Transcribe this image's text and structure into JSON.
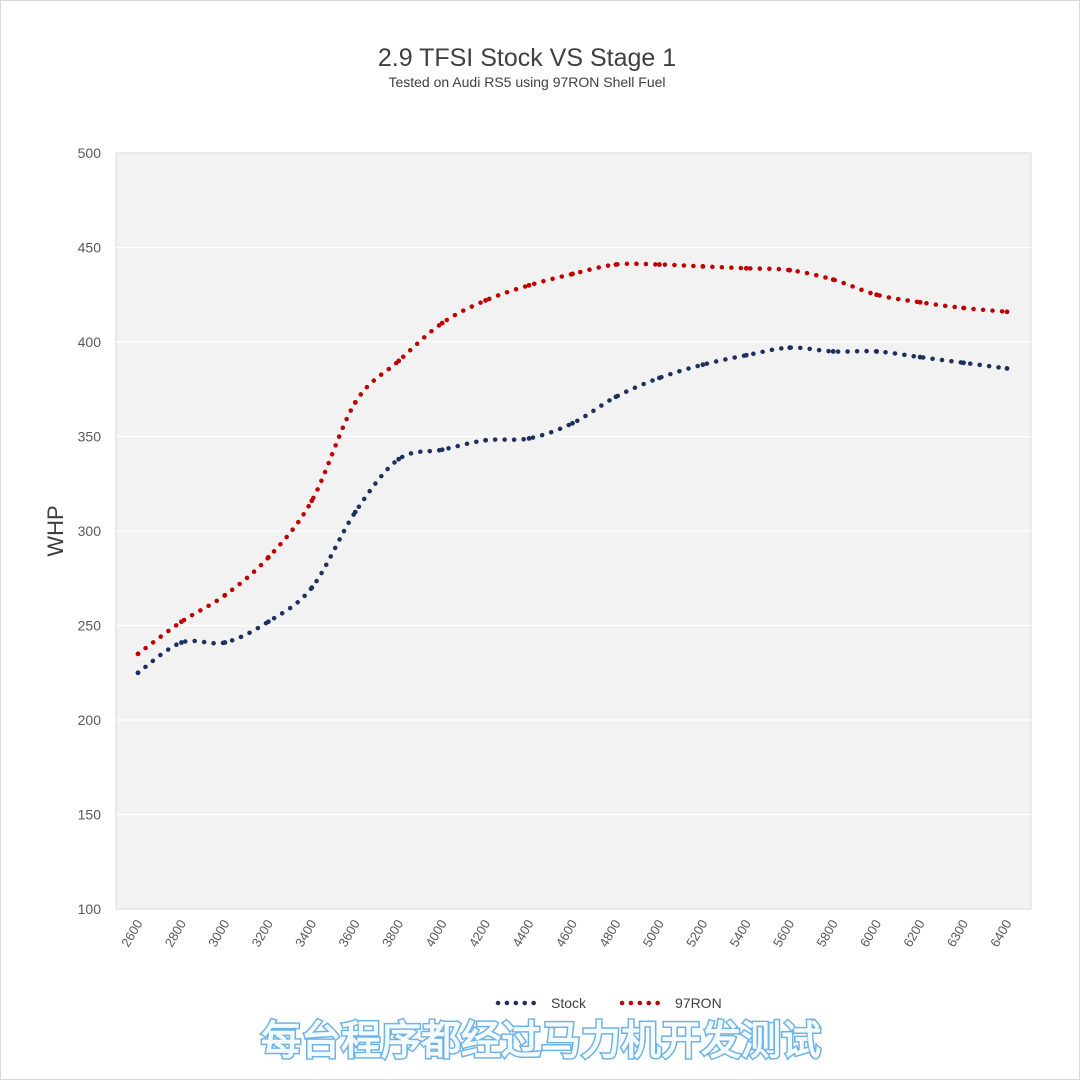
{
  "chart_data": {
    "type": "line",
    "title": "2.9 TFSI Stock VS Stage 1",
    "subtitle": "Tested on Audi RS5 using 97RON Shell Fuel",
    "ylabel": "WHP",
    "xlabel": "",
    "ylim": [
      100,
      500
    ],
    "yticks": [
      100,
      150,
      200,
      250,
      300,
      350,
      400,
      450,
      500
    ],
    "categories": [
      "2600",
      "2800",
      "3000",
      "3200",
      "3400",
      "3600",
      "3800",
      "4000",
      "4200",
      "4400",
      "4600",
      "4800",
      "5000",
      "5200",
      "5400",
      "5600",
      "5800",
      "6000",
      "6200",
      "6300",
      "6400"
    ],
    "grid": true,
    "legend_position": "bottom",
    "series": [
      {
        "name": "Stock",
        "color": "#1f2f5e",
        "values": [
          225,
          241,
          241,
          252,
          270,
          310,
          338,
          343,
          348,
          349,
          357,
          371,
          381,
          388,
          393,
          397,
          395,
          395,
          392,
          389,
          386
        ]
      },
      {
        "name": "97RON",
        "color": "#c00000",
        "values": [
          235,
          252,
          266,
          286,
          316,
          368,
          390,
          410,
          422,
          430,
          436,
          441,
          441,
          440,
          439,
          438,
          433,
          425,
          421,
          418,
          416
        ]
      }
    ]
  },
  "watermark": "每台程序都经过马力机开发测试"
}
